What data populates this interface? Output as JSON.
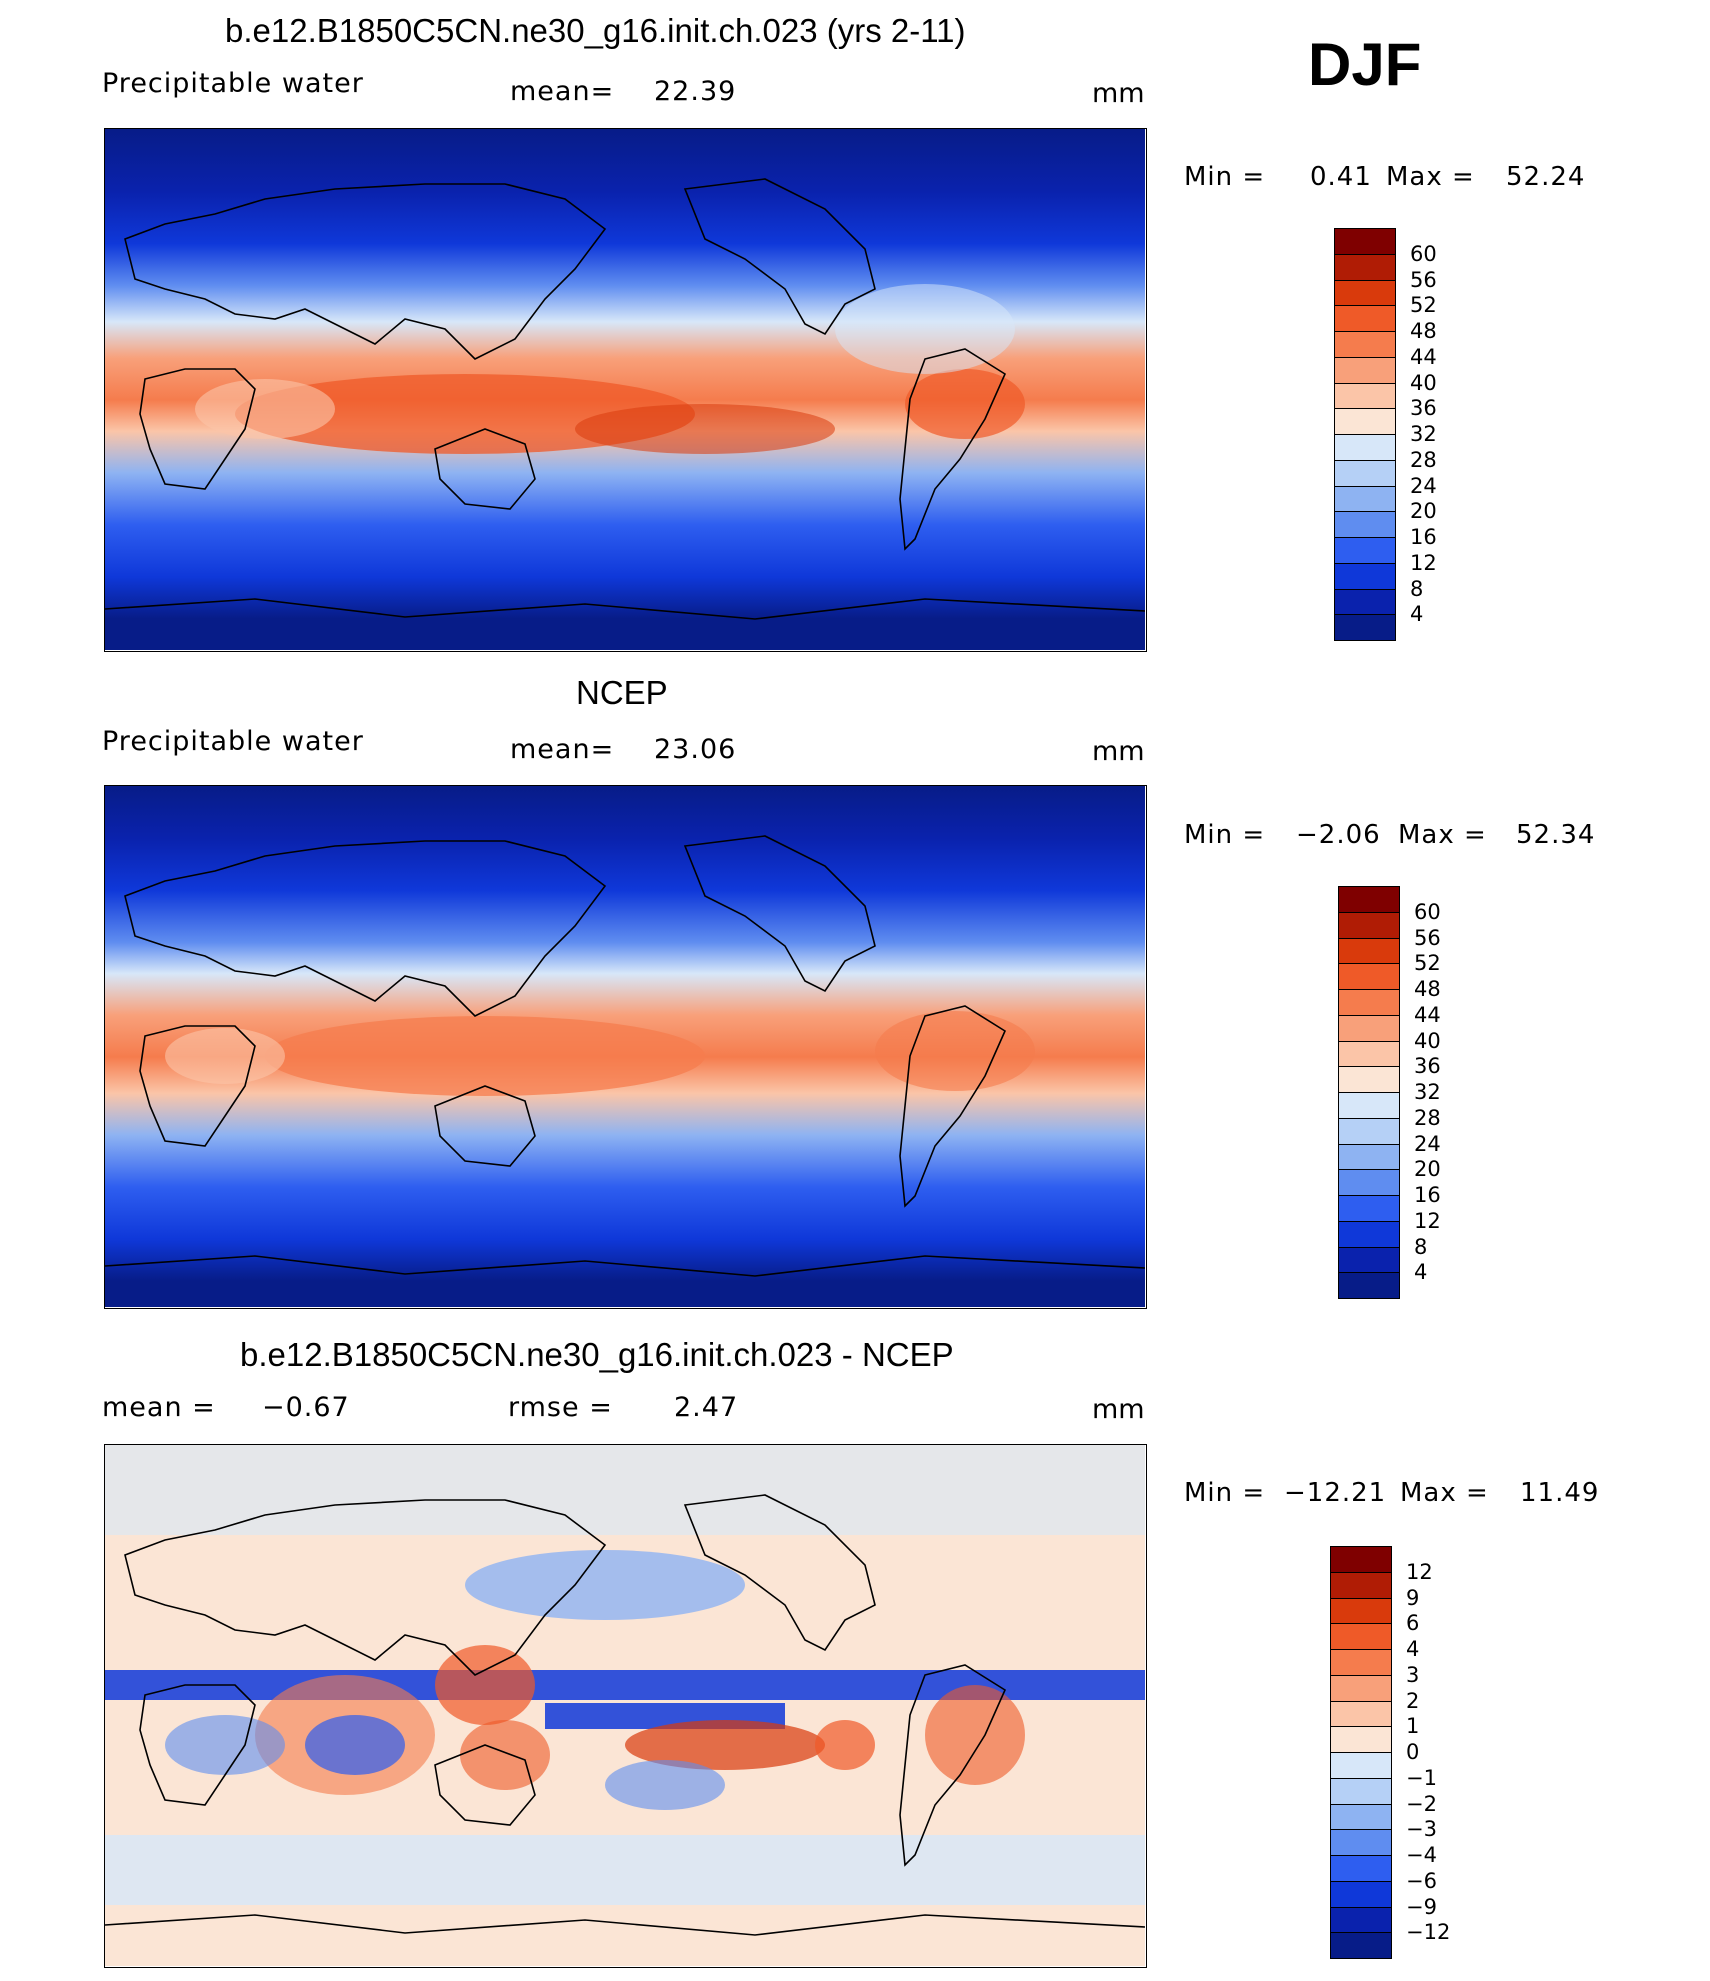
{
  "season": "DJF",
  "chart_data": [
    {
      "type": "heatmap",
      "title": "b.e12.B1850C5CN.ne30_g16.init.ch.023 (yrs 2-11)",
      "variable": "Precipitable water",
      "stat_label": "mean=",
      "stat_value": "22.39",
      "units": "mm",
      "min_label": "Min =",
      "min_value": "0.41",
      "max_label": "Max =",
      "max_value": "52.24",
      "colorbar_levels": [
        "60",
        "56",
        "52",
        "48",
        "44",
        "40",
        "36",
        "32",
        "28",
        "24",
        "20",
        "16",
        "12",
        "8",
        "4"
      ],
      "colors": [
        "#7f0000",
        "#b01c05",
        "#d93a0c",
        "#ef5a28",
        "#f57c4d",
        "#f8a07a",
        "#fbc5a8",
        "#fbe5d5",
        "#d7e7f9",
        "#b5d0f6",
        "#8eb3f2",
        "#5f8df0",
        "#2e5ef0",
        "#0f38d9",
        "#0a22ad",
        "#071c88"
      ]
    },
    {
      "type": "heatmap",
      "title": "NCEP",
      "variable": "Precipitable water",
      "stat_label": "mean=",
      "stat_value": "23.06",
      "units": "mm",
      "min_label": "Min =",
      "min_value": "−2.06",
      "max_label": "Max =",
      "max_value": "52.34",
      "colorbar_levels": [
        "60",
        "56",
        "52",
        "48",
        "44",
        "40",
        "36",
        "32",
        "28",
        "24",
        "20",
        "16",
        "12",
        "8",
        "4"
      ],
      "colors": [
        "#7f0000",
        "#b01c05",
        "#d93a0c",
        "#ef5a28",
        "#f57c4d",
        "#f8a07a",
        "#fbc5a8",
        "#fbe5d5",
        "#d7e7f9",
        "#b5d0f6",
        "#8eb3f2",
        "#5f8df0",
        "#2e5ef0",
        "#0f38d9",
        "#0a22ad",
        "#071c88"
      ]
    },
    {
      "type": "heatmap",
      "title": "b.e12.B1850C5CN.ne30_g16.init.ch.023 - NCEP",
      "stat_label": "mean =",
      "stat_value": "−0.67",
      "stat2_label": "rmse =",
      "stat2_value": "2.47",
      "units": "mm",
      "min_label": "Min =",
      "min_value": "−12.21",
      "max_label": "Max =",
      "max_value": "11.49",
      "colorbar_levels": [
        "12",
        "9",
        "6",
        "4",
        "3",
        "2",
        "1",
        "0",
        "−1",
        "−2",
        "−3",
        "−4",
        "−6",
        "−9",
        "−12"
      ],
      "colors": [
        "#7f0000",
        "#b01c05",
        "#d93a0c",
        "#ef5a28",
        "#f57c4d",
        "#f8a07a",
        "#fbc5a8",
        "#fbe5d5",
        "#d7e7f9",
        "#b5d0f6",
        "#8eb3f2",
        "#5f8df0",
        "#2e5ef0",
        "#0f38d9",
        "#0a22ad",
        "#071c88"
      ]
    }
  ]
}
